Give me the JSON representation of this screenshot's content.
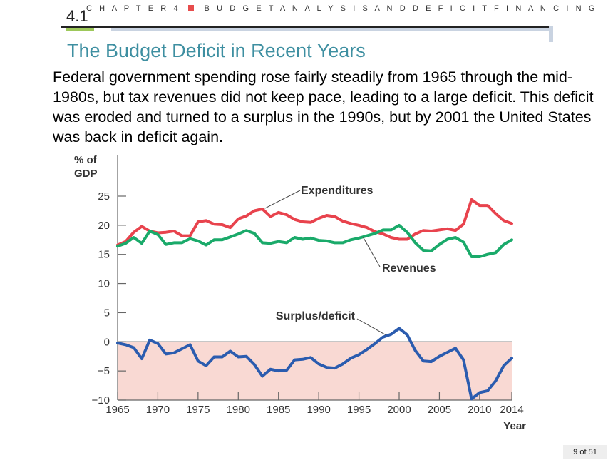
{
  "header": {
    "chapter": "C H A P T E R   4",
    "chapter_title": "B U D G E T   A N A L Y S I S   A N D   D E F I C I T   F I N A N C I N G",
    "section_number": "4.1",
    "title": "The Budget Deficit in Recent Years",
    "accent_color": "#e74c4c",
    "section_bar_color": "#9dc85a",
    "title_color": "#3e8fa1"
  },
  "body_text": "Federal government spending rose fairly steadily from 1965 through the mid-1980s, but tax revenues did not keep pace, leading to a large deficit. This deficit was eroded and turned to a surplus in the 1990s, but by 2001 the United States was back in deficit again.",
  "page_indicator": "9 of 51",
  "chart_data": {
    "type": "line",
    "ylabel_line1": "% of",
    "ylabel_line2": "GDP",
    "xlabel": "Year",
    "ylim": [
      -10,
      25
    ],
    "xlim": [
      1965,
      2014
    ],
    "y_ticks": [
      "25",
      "20",
      "15",
      "10",
      "5",
      "0",
      "−5",
      "−10"
    ],
    "y_tick_values": [
      25,
      20,
      15,
      10,
      5,
      0,
      -5,
      -10
    ],
    "x_ticks": [
      "1965",
      "1970",
      "1975",
      "1980",
      "1985",
      "1990",
      "1995",
      "2000",
      "2005",
      "2010",
      "2014"
    ],
    "x_tick_values": [
      1965,
      1970,
      1975,
      1980,
      1985,
      1990,
      1995,
      2000,
      2005,
      2010,
      2014
    ],
    "deficit_region_color": "#f9d9d3",
    "x": [
      1965,
      1966,
      1967,
      1968,
      1969,
      1970,
      1971,
      1972,
      1973,
      1974,
      1975,
      1976,
      1977,
      1978,
      1979,
      1980,
      1981,
      1982,
      1983,
      1984,
      1985,
      1986,
      1987,
      1988,
      1989,
      1990,
      1991,
      1992,
      1993,
      1994,
      1995,
      1996,
      1997,
      1998,
      1999,
      2000,
      2001,
      2002,
      2003,
      2004,
      2005,
      2006,
      2007,
      2008,
      2009,
      2010,
      2011,
      2012,
      2013,
      2014
    ],
    "series": [
      {
        "name": "Expenditures",
        "color": "#e8434d",
        "values": [
          16.6,
          17.2,
          18.8,
          19.8,
          19.0,
          18.7,
          18.8,
          19.0,
          18.2,
          18.2,
          20.6,
          20.8,
          20.2,
          20.1,
          19.6,
          21.1,
          21.6,
          22.5,
          22.8,
          21.5,
          22.2,
          21.8,
          21.0,
          20.6,
          20.5,
          21.2,
          21.7,
          21.5,
          20.7,
          20.3,
          20.0,
          19.6,
          18.9,
          18.5,
          17.9,
          17.6,
          17.6,
          18.5,
          19.1,
          19.0,
          19.2,
          19.4,
          19.1,
          20.2,
          24.4,
          23.4,
          23.4,
          22.0,
          20.8,
          20.3
        ]
      },
      {
        "name": "Revenues",
        "color": "#1aaa6a",
        "values": [
          16.4,
          16.9,
          17.9,
          16.9,
          19.0,
          18.4,
          16.7,
          17.0,
          17.0,
          17.7,
          17.3,
          16.6,
          17.5,
          17.5,
          18.0,
          18.5,
          19.1,
          18.6,
          17.0,
          16.9,
          17.2,
          17.0,
          17.9,
          17.6,
          17.8,
          17.4,
          17.3,
          17.0,
          17.0,
          17.5,
          17.8,
          18.2,
          18.6,
          19.2,
          19.2,
          20.0,
          18.8,
          17.0,
          15.7,
          15.6,
          16.7,
          17.6,
          17.9,
          17.1,
          14.6,
          14.6,
          15.0,
          15.3,
          16.7,
          17.5
        ]
      },
      {
        "name": "Surplus/deficit",
        "color": "#2b5caf",
        "values": [
          -0.2,
          -0.5,
          -1.0,
          -2.9,
          0.3,
          -0.3,
          -2.1,
          -1.9,
          -1.2,
          -0.5,
          -3.3,
          -4.1,
          -2.6,
          -2.6,
          -1.6,
          -2.6,
          -2.5,
          -3.9,
          -5.9,
          -4.7,
          -5.0,
          -4.9,
          -3.1,
          -3.0,
          -2.7,
          -3.8,
          -4.4,
          -4.5,
          -3.8,
          -2.8,
          -2.2,
          -1.3,
          -0.3,
          0.8,
          1.3,
          2.3,
          1.2,
          -1.5,
          -3.3,
          -3.4,
          -2.5,
          -1.8,
          -1.1,
          -3.1,
          -9.8,
          -8.7,
          -8.4,
          -6.7,
          -4.1,
          -2.8
        ]
      }
    ],
    "annotations": [
      {
        "text": "Expenditures",
        "series": "Expenditures"
      },
      {
        "text": "Revenues",
        "series": "Revenues"
      },
      {
        "text": "Surplus/deficit",
        "series": "Surplus/deficit"
      }
    ]
  }
}
